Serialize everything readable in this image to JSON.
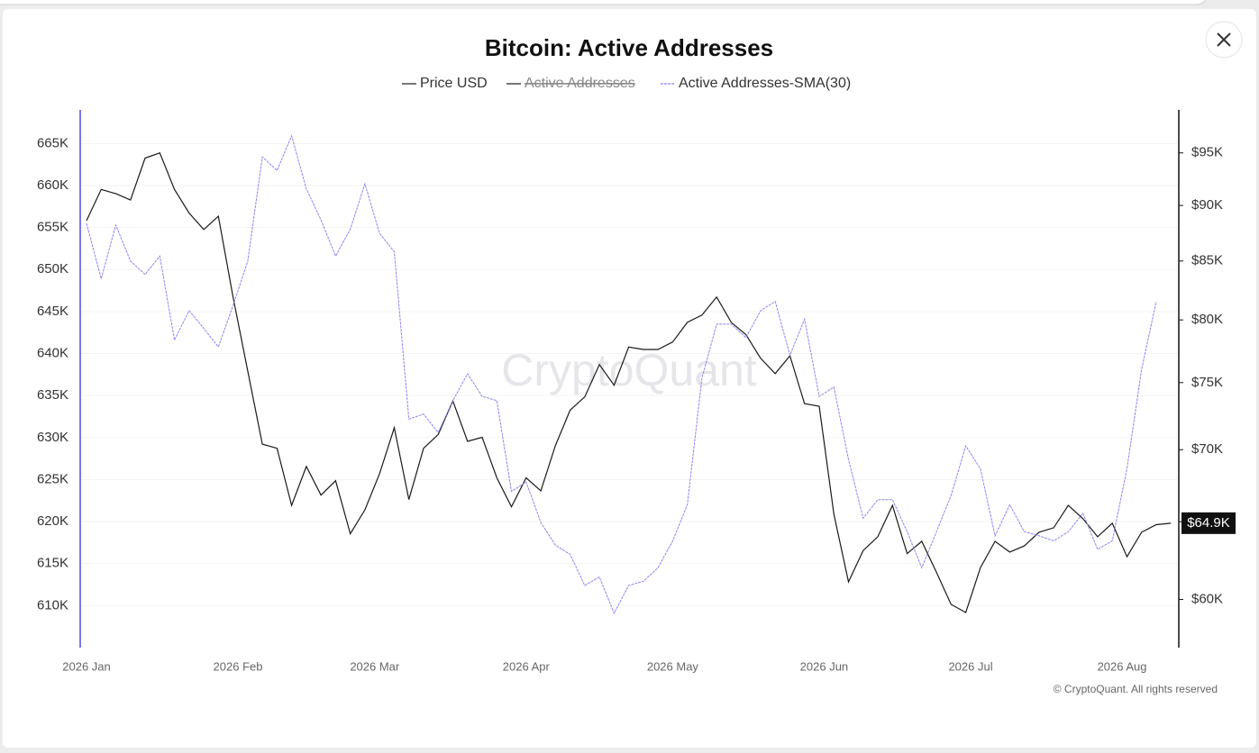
{
  "chart_data": {
    "type": "line",
    "title": "Bitcoin: Active Addresses",
    "xticks": [
      "2026 Jan",
      "2026 Feb",
      "2026 Mar",
      "2026 Apr",
      "2026 May",
      "2026 Jun",
      "2026 Jul",
      "2026 Aug"
    ],
    "series": [
      {
        "name": "Price USD",
        "color": "#1a1a1a",
        "axis": "y2",
        "values": [
          88600,
          91500,
          91100,
          90500,
          94500,
          95000,
          91500,
          89300,
          87800,
          89000,
          81900,
          75900,
          70400,
          70100,
          66100,
          68800,
          66800,
          67800,
          64200,
          65800,
          68300,
          71600,
          66500,
          70100,
          71100,
          73600,
          70600,
          70900,
          68000,
          66000,
          68000,
          67100,
          70300,
          72900,
          73900,
          76400,
          74800,
          77800,
          77600,
          77600,
          78200,
          79800,
          80400,
          81900,
          79800,
          78800,
          76900,
          75700,
          77100,
          73400,
          73200,
          65500,
          61100,
          63100,
          64000,
          66100,
          62900,
          63700,
          61700,
          59700,
          59200,
          62000,
          63700,
          63000,
          63400,
          64300,
          64600,
          66100,
          65200,
          64000,
          64900,
          62700,
          64300,
          64800,
          64900
        ]
      },
      {
        "name": "Active Addresses",
        "color": "#1a1a1a",
        "visible": false
      },
      {
        "name": "Active Addresses-SMA(30)",
        "color": "#8c85f2",
        "dashed": true,
        "values": [
          655500,
          648900,
          655300,
          651000,
          649400,
          651600,
          641600,
          645100,
          643000,
          640800,
          645700,
          651000,
          663400,
          661800,
          665900,
          659600,
          655900,
          651600,
          654800,
          660200,
          654300,
          652100,
          632200,
          632800,
          630600,
          634400,
          637600,
          634900,
          634400,
          623600,
          624700,
          619900,
          617200,
          616100,
          612400,
          613400,
          609100,
          612400,
          612900,
          614500,
          617700,
          622000,
          637100,
          643500,
          643500,
          641900,
          645100,
          646200,
          639800,
          644100,
          634900,
          636000,
          627400,
          620400,
          622600,
          622600,
          618800,
          614500,
          618800,
          623100,
          629000,
          626300,
          618300,
          622000,
          618800,
          618300,
          617700,
          618800,
          621000,
          616700,
          617700,
          626300,
          638100,
          646200,
          null
        ]
      }
    ],
    "ylim": [
      605000,
      669000
    ],
    "yticks": [
      {
        "value": 610000,
        "label": "610K"
      },
      {
        "value": 615000,
        "label": "615K"
      },
      {
        "value": 620000,
        "label": "620K"
      },
      {
        "value": 625000,
        "label": "625K"
      },
      {
        "value": 630000,
        "label": "630K"
      },
      {
        "value": 635000,
        "label": "635K"
      },
      {
        "value": 640000,
        "label": "640K"
      },
      {
        "value": 645000,
        "label": "645K"
      },
      {
        "value": 650000,
        "label": "650K"
      },
      {
        "value": 655000,
        "label": "655K"
      },
      {
        "value": 660000,
        "label": "660K"
      },
      {
        "value": 665000,
        "label": "665K"
      }
    ],
    "y2lim": [
      57100,
      99300
    ],
    "y2scale": "log",
    "y2ticks": [
      {
        "value": 60000,
        "label": "$60K"
      },
      {
        "value": 65000,
        "label": "$65K"
      },
      {
        "value": 70000,
        "label": "$70K"
      },
      {
        "value": 75000,
        "label": "$75K"
      },
      {
        "value": 80000,
        "label": "$80K"
      },
      {
        "value": 85000,
        "label": "$85K"
      },
      {
        "value": 90000,
        "label": "$90K"
      },
      {
        "value": 95000,
        "label": "$95K"
      }
    ],
    "grid": true,
    "price_marker": {
      "value": 64900,
      "label": "$64.9K"
    },
    "watermark": "CryptoQuant",
    "credit": "© CryptoQuant. All rights reserved"
  }
}
